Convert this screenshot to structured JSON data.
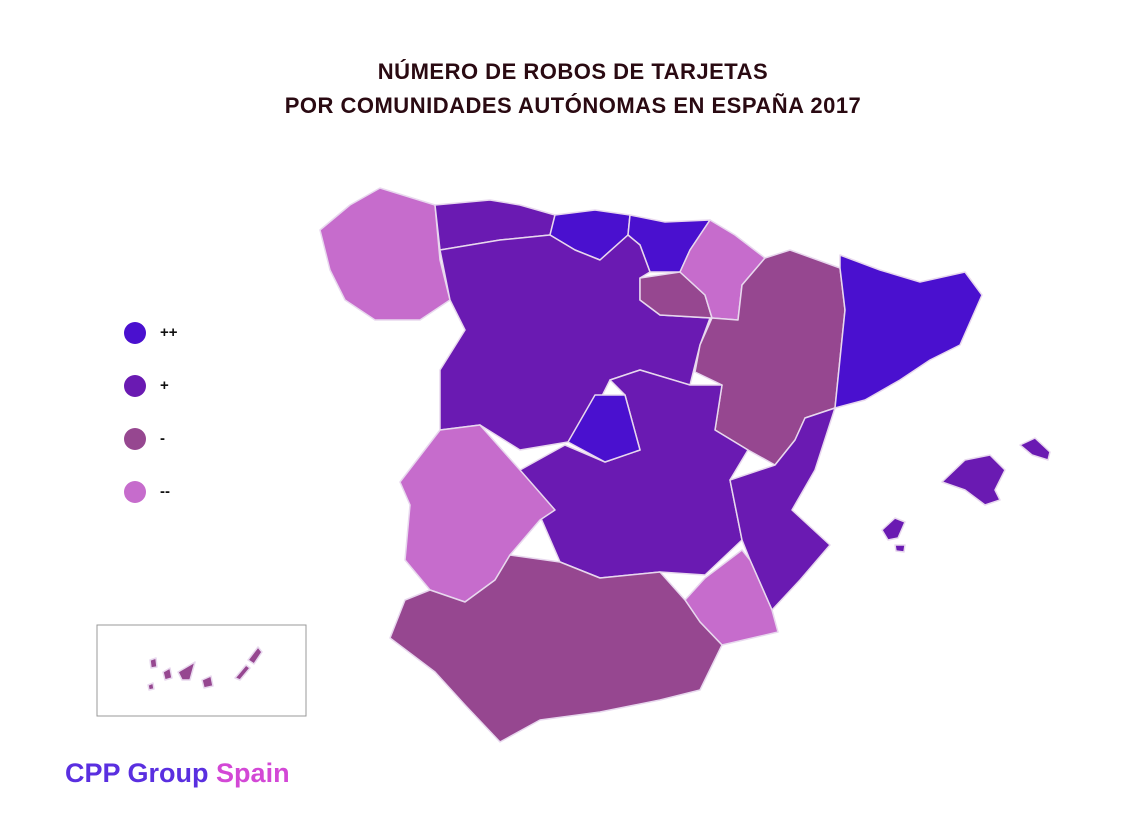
{
  "title": [
    "NÚMERO DE ROBOS DE TARJETAS",
    "POR COMUNIDADES AUTÓNOMAS EN ESPAÑA 2017"
  ],
  "legend": [
    {
      "label": "++",
      "color": "#4a10cf"
    },
    {
      "label": "+",
      "color": "#6a1ab2"
    },
    {
      "label": "-",
      "color": "#964790"
    },
    {
      "label": "--",
      "color": "#c66ccc"
    }
  ],
  "logo": {
    "brand": "CPP Group",
    "country": "Spain"
  }
}
